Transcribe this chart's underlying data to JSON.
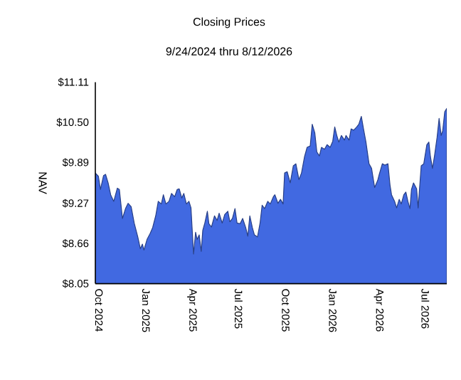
{
  "chart_data": {
    "type": "area",
    "title": "Closing Prices",
    "subtitle": "9/24/2024 thru 8/12/2026",
    "ylabel": "NAV",
    "xlim": [
      "2024-09-24",
      "2026-08-12"
    ],
    "xticks": [
      {
        "value": "2024-10-01",
        "label": "Oct 2024"
      },
      {
        "value": "2025-01-01",
        "label": "Jan 2025"
      },
      {
        "value": "2025-04-01",
        "label": "Apr 2025"
      },
      {
        "value": "2025-07-01",
        "label": "Jul 2025"
      },
      {
        "value": "2025-10-01",
        "label": "Oct 2025"
      },
      {
        "value": "2026-01-01",
        "label": "Jan 2026"
      },
      {
        "value": "2026-04-01",
        "label": "Apr 2026"
      },
      {
        "value": "2026-07-01",
        "label": "Jul 2026"
      }
    ],
    "ylim": [
      8.05,
      11.11
    ],
    "yticks": [
      {
        "value": 8.05,
        "label": "$8.05"
      },
      {
        "value": 8.66,
        "label": "$8.66"
      },
      {
        "value": 9.27,
        "label": "$9.27"
      },
      {
        "value": 9.89,
        "label": "$9.89"
      },
      {
        "value": 10.5,
        "label": "$10.50"
      },
      {
        "value": 11.11,
        "label": "$11.11"
      }
    ],
    "grid": false,
    "x": [
      "2024-09-24",
      "2024-09-30",
      "2024-10-04",
      "2024-10-10",
      "2024-10-14",
      "2024-10-19",
      "2024-10-24",
      "2024-10-30",
      "2024-11-06",
      "2024-11-10",
      "2024-11-16",
      "2024-11-22",
      "2024-11-27",
      "2024-12-03",
      "2024-12-09",
      "2024-12-16",
      "2024-12-21",
      "2024-12-25",
      "2024-12-28",
      "2025-01-03",
      "2025-01-09",
      "2025-01-14",
      "2025-01-20",
      "2025-01-25",
      "2025-01-31",
      "2025-02-04",
      "2025-02-09",
      "2025-02-15",
      "2025-02-20",
      "2025-02-26",
      "2025-03-03",
      "2025-03-07",
      "2025-03-12",
      "2025-03-16",
      "2025-03-21",
      "2025-03-26",
      "2025-03-30",
      "2025-04-04",
      "2025-04-08",
      "2025-04-11",
      "2025-04-15",
      "2025-04-19",
      "2025-04-22",
      "2025-04-26",
      "2025-05-01",
      "2025-05-04",
      "2025-05-09",
      "2025-05-15",
      "2025-05-20",
      "2025-05-24",
      "2025-05-30",
      "2025-06-04",
      "2025-06-10",
      "2025-06-14",
      "2025-06-19",
      "2025-06-24",
      "2025-06-28",
      "2025-07-04",
      "2025-07-09",
      "2025-07-15",
      "2025-07-19",
      "2025-07-23",
      "2025-07-28",
      "2025-08-01",
      "2025-08-07",
      "2025-08-12",
      "2025-08-16",
      "2025-08-21",
      "2025-08-27",
      "2025-09-01",
      "2025-09-07",
      "2025-09-10",
      "2025-09-16",
      "2025-09-21",
      "2025-09-26",
      "2025-09-29",
      "2025-10-04",
      "2025-10-10",
      "2025-10-16",
      "2025-10-21",
      "2025-10-27",
      "2025-11-01",
      "2025-11-07",
      "2025-11-12",
      "2025-11-18",
      "2025-11-22",
      "2025-11-27",
      "2025-12-01",
      "2025-12-06",
      "2025-12-10",
      "2025-12-16",
      "2025-12-21",
      "2025-12-27",
      "2026-01-01",
      "2026-01-05",
      "2026-01-09",
      "2026-01-13",
      "2026-01-18",
      "2026-01-24",
      "2026-01-27",
      "2026-02-02",
      "2026-02-06",
      "2026-02-11",
      "2026-02-17",
      "2026-02-21",
      "2026-02-26",
      "2026-03-02",
      "2026-03-07",
      "2026-03-13",
      "2026-03-18",
      "2026-03-24",
      "2026-03-30",
      "2026-04-02",
      "2026-04-08",
      "2026-04-13",
      "2026-04-19",
      "2026-04-23",
      "2026-04-26",
      "2026-05-02",
      "2026-05-06",
      "2026-05-11",
      "2026-05-15",
      "2026-05-20",
      "2026-05-24",
      "2026-05-28",
      "2026-06-01",
      "2026-06-04",
      "2026-06-08",
      "2026-06-14",
      "2026-06-17",
      "2026-06-23",
      "2026-06-28",
      "2026-07-04",
      "2026-07-08",
      "2026-07-11",
      "2026-07-15",
      "2026-07-19",
      "2026-07-24",
      "2026-07-28",
      "2026-08-01",
      "2026-08-04",
      "2026-08-08",
      "2026-08-12"
    ],
    "series": [
      {
        "color": "#4169e1",
        "values": [
          9.73,
          9.68,
          9.48,
          9.69,
          9.71,
          9.58,
          9.4,
          9.3,
          9.5,
          9.48,
          9.04,
          9.19,
          9.27,
          9.22,
          8.97,
          8.76,
          8.58,
          8.65,
          8.56,
          8.72,
          8.81,
          8.9,
          9.08,
          9.3,
          9.26,
          9.4,
          9.26,
          9.3,
          9.42,
          9.37,
          9.48,
          9.49,
          9.35,
          9.42,
          9.26,
          9.3,
          9.2,
          8.5,
          8.83,
          8.72,
          8.79,
          8.54,
          8.86,
          8.97,
          9.15,
          8.96,
          8.91,
          9.08,
          9.01,
          9.12,
          8.97,
          9.1,
          9.15,
          8.99,
          9.04,
          9.19,
          8.97,
          8.96,
          9.04,
          8.9,
          8.77,
          9.08,
          8.9,
          8.79,
          8.76,
          8.97,
          9.24,
          9.19,
          9.3,
          9.26,
          9.37,
          9.4,
          9.27,
          9.33,
          9.26,
          9.73,
          9.75,
          9.58,
          9.84,
          9.87,
          9.63,
          9.73,
          9.98,
          10.12,
          10.14,
          10.47,
          10.34,
          10.05,
          9.99,
          10.12,
          10.09,
          10.16,
          10.12,
          10.21,
          10.43,
          10.3,
          10.2,
          10.3,
          10.23,
          10.3,
          10.23,
          10.4,
          10.38,
          10.43,
          10.47,
          10.59,
          10.41,
          10.2,
          9.87,
          9.8,
          9.51,
          9.62,
          9.71,
          9.87,
          9.85,
          9.87,
          9.55,
          9.4,
          9.3,
          9.2,
          9.33,
          9.26,
          9.4,
          9.44,
          9.3,
          9.19,
          9.48,
          9.58,
          9.49,
          9.2,
          9.84,
          9.87,
          10.16,
          10.2,
          9.98,
          9.8,
          9.99,
          10.27,
          10.56,
          10.3,
          10.37,
          10.66,
          10.71
        ]
      }
    ]
  }
}
